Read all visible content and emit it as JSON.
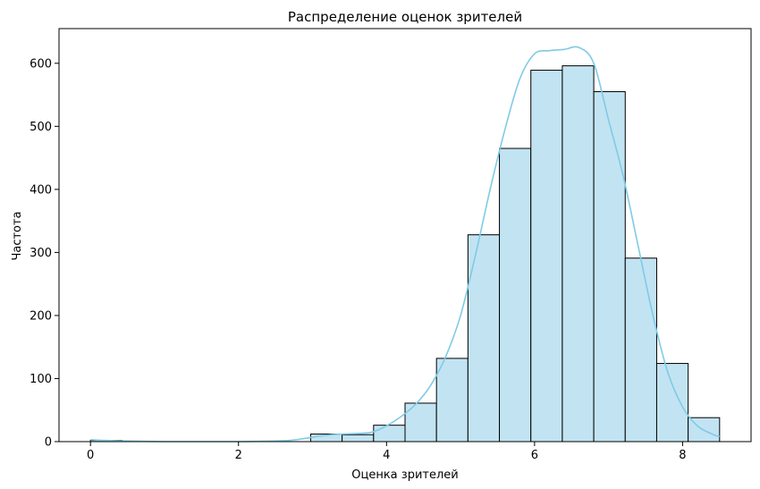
{
  "chart_data": {
    "type": "bar",
    "title": "Распределение оценок зрителей",
    "xlabel": "Оценка зрителей",
    "ylabel": "Частота",
    "xlim": [
      -0.425,
      8.925
    ],
    "ylim": [
      0,
      655
    ],
    "xticks": [
      0,
      2,
      4,
      6,
      8
    ],
    "yticks": [
      0,
      100,
      200,
      300,
      400,
      500,
      600
    ],
    "bar_color": "#c2e3f2",
    "edge_color": "#000000",
    "kde_color": "#7fcbe6",
    "bins": [
      {
        "start": 0.0,
        "end": 0.425,
        "count": 2
      },
      {
        "start": 0.425,
        "end": 0.85,
        "count": 0
      },
      {
        "start": 0.85,
        "end": 1.275,
        "count": 0
      },
      {
        "start": 1.275,
        "end": 1.7,
        "count": 0
      },
      {
        "start": 1.7,
        "end": 2.125,
        "count": 0
      },
      {
        "start": 2.125,
        "end": 2.55,
        "count": 0
      },
      {
        "start": 2.55,
        "end": 2.975,
        "count": 0
      },
      {
        "start": 2.975,
        "end": 3.4,
        "count": 12
      },
      {
        "start": 3.4,
        "end": 3.825,
        "count": 11
      },
      {
        "start": 3.825,
        "end": 4.25,
        "count": 26
      },
      {
        "start": 4.25,
        "end": 4.675,
        "count": 61
      },
      {
        "start": 4.675,
        "end": 5.1,
        "count": 132
      },
      {
        "start": 5.1,
        "end": 5.525,
        "count": 328
      },
      {
        "start": 5.525,
        "end": 5.95,
        "count": 465
      },
      {
        "start": 5.95,
        "end": 6.375,
        "count": 589
      },
      {
        "start": 6.375,
        "end": 6.8,
        "count": 596
      },
      {
        "start": 6.8,
        "end": 7.225,
        "count": 555
      },
      {
        "start": 7.225,
        "end": 7.65,
        "count": 291
      },
      {
        "start": 7.65,
        "end": 8.075,
        "count": 124
      },
      {
        "start": 8.075,
        "end": 8.5,
        "count": 38
      }
    ],
    "kde": {
      "x": [
        0.0,
        0.2,
        0.5,
        1.0,
        1.5,
        2.0,
        2.5,
        2.7,
        2.9,
        3.1,
        3.4,
        3.6,
        3.8,
        4.0,
        4.2,
        4.4,
        4.6,
        4.8,
        5.0,
        5.2,
        5.4,
        5.6,
        5.8,
        6.0,
        6.2,
        6.4,
        6.6,
        6.8,
        7.0,
        7.2,
        7.4,
        7.6,
        7.8,
        8.0,
        8.2,
        8.4,
        8.5
      ],
      "y": [
        3,
        2,
        1,
        0,
        0,
        0,
        1,
        2,
        5,
        9,
        12,
        13,
        15,
        25,
        40,
        60,
        90,
        135,
        200,
        295,
        400,
        495,
        575,
        615,
        620,
        622,
        625,
        600,
        510,
        420,
        310,
        200,
        110,
        55,
        25,
        12,
        8
      ]
    }
  }
}
